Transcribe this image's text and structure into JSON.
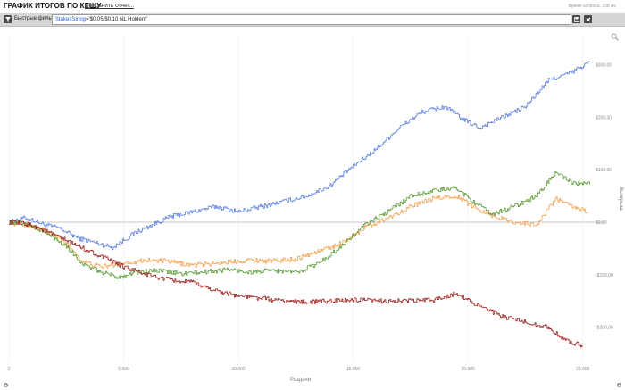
{
  "header": {
    "title": "ГРАФИК ИТОГОВ ПО КЕШУ",
    "save_link": "Сохранить отчет...",
    "timing": "Время запроса: 238 мс"
  },
  "filterbar": {
    "label": "Быстрые фильт",
    "filter_key": "StakesString",
    "filter_op": "=",
    "filter_value": "'$0,05/$0,10 NL Holdem'",
    "icons": [
      "filter-icon",
      "save-icon",
      "clear-icon"
    ]
  },
  "icons": {
    "zoom": "zoom-icon",
    "settings_left": "gear-icon",
    "settings_right": "gear-icon"
  },
  "chart_data": {
    "type": "line",
    "xlabel": "Раздачи",
    "ylabel": "Выигрыш",
    "xlim": [
      0,
      25400
    ],
    "ylim": [
      -265,
      355
    ],
    "x_ticks": [
      {
        "value": 0,
        "label": "0"
      },
      {
        "value": 5000,
        "label": "5 000"
      },
      {
        "value": 10000,
        "label": "10 000"
      },
      {
        "value": 15000,
        "label": "15 000"
      },
      {
        "value": 20000,
        "label": "20 000"
      },
      {
        "value": 25000,
        "label": "25 000"
      }
    ],
    "y_ticks": [
      {
        "value": 300,
        "label": "$300,00"
      },
      {
        "value": 200,
        "label": "$200,00"
      },
      {
        "value": 100,
        "label": "$100,00"
      },
      {
        "value": 0,
        "label": "$0,00"
      },
      {
        "value": -100,
        "label": "-$100,00"
      },
      {
        "value": -200,
        "label": "-$200,00"
      }
    ],
    "grid": "vertical",
    "colors": {
      "blue": "#5b7fe0",
      "orange": "#f3a14e",
      "green": "#5a9a36",
      "red": "#9b1c1c",
      "zero_line": "#b5b5b5",
      "grid": "#ececec"
    },
    "series": [
      {
        "color": "#5b7fe0",
        "anchors": [
          [
            0,
            0
          ],
          [
            600,
            8
          ],
          [
            1000,
            5
          ],
          [
            1500,
            -4
          ],
          [
            2200,
            -12
          ],
          [
            3000,
            -30
          ],
          [
            4500,
            -48
          ],
          [
            5500,
            -20
          ],
          [
            7000,
            10
          ],
          [
            9000,
            30
          ],
          [
            10000,
            20
          ],
          [
            11500,
            35
          ],
          [
            13000,
            50
          ],
          [
            14000,
            70
          ],
          [
            14800,
            100
          ],
          [
            16000,
            140
          ],
          [
            17000,
            180
          ],
          [
            18000,
            210
          ],
          [
            19000,
            220
          ],
          [
            19800,
            195
          ],
          [
            20500,
            180
          ],
          [
            21500,
            200
          ],
          [
            22500,
            220
          ],
          [
            23500,
            270
          ],
          [
            24500,
            285
          ],
          [
            25300,
            305
          ]
        ]
      },
      {
        "color": "#f3a14e",
        "anchors": [
          [
            0,
            0
          ],
          [
            700,
            -5
          ],
          [
            1500,
            -15
          ],
          [
            2500,
            -40
          ],
          [
            3200,
            -75
          ],
          [
            4000,
            -85
          ],
          [
            5000,
            -78
          ],
          [
            6000,
            -72
          ],
          [
            7000,
            -75
          ],
          [
            8000,
            -82
          ],
          [
            9000,
            -78
          ],
          [
            10500,
            -72
          ],
          [
            11500,
            -74
          ],
          [
            12500,
            -70
          ],
          [
            13500,
            -55
          ],
          [
            14500,
            -40
          ],
          [
            15500,
            -10
          ],
          [
            16500,
            8
          ],
          [
            17500,
            30
          ],
          [
            18500,
            45
          ],
          [
            19500,
            50
          ],
          [
            20200,
            30
          ],
          [
            21200,
            10
          ],
          [
            22000,
            0
          ],
          [
            23000,
            -5
          ],
          [
            23800,
            45
          ],
          [
            24500,
            30
          ],
          [
            25200,
            20
          ]
        ]
      },
      {
        "color": "#5a9a36",
        "anchors": [
          [
            0,
            0
          ],
          [
            700,
            -2
          ],
          [
            1500,
            -18
          ],
          [
            2500,
            -45
          ],
          [
            3200,
            -80
          ],
          [
            4000,
            -95
          ],
          [
            4800,
            -105
          ],
          [
            5500,
            -95
          ],
          [
            6500,
            -92
          ],
          [
            7500,
            -98
          ],
          [
            8500,
            -95
          ],
          [
            9500,
            -90
          ],
          [
            10500,
            -95
          ],
          [
            11500,
            -92
          ],
          [
            12500,
            -95
          ],
          [
            13500,
            -78
          ],
          [
            14500,
            -45
          ],
          [
            15500,
            -5
          ],
          [
            16500,
            20
          ],
          [
            17500,
            50
          ],
          [
            18500,
            60
          ],
          [
            19500,
            65
          ],
          [
            20200,
            40
          ],
          [
            21000,
            15
          ],
          [
            22000,
            30
          ],
          [
            23000,
            50
          ],
          [
            23800,
            95
          ],
          [
            24500,
            75
          ],
          [
            25300,
            72
          ]
        ]
      },
      {
        "color": "#9b1c1c",
        "anchors": [
          [
            0,
            0
          ],
          [
            1000,
            -5
          ],
          [
            2000,
            -25
          ],
          [
            3000,
            -45
          ],
          [
            4000,
            -65
          ],
          [
            5000,
            -85
          ],
          [
            6000,
            -100
          ],
          [
            7000,
            -110
          ],
          [
            8000,
            -115
          ],
          [
            9000,
            -130
          ],
          [
            10000,
            -140
          ],
          [
            11000,
            -145
          ],
          [
            12000,
            -150
          ],
          [
            13000,
            -152
          ],
          [
            14000,
            -150
          ],
          [
            15000,
            -148
          ],
          [
            16000,
            -150
          ],
          [
            17000,
            -150
          ],
          [
            18500,
            -148
          ],
          [
            19500,
            -135
          ],
          [
            20500,
            -160
          ],
          [
            21500,
            -180
          ],
          [
            22500,
            -190
          ],
          [
            23500,
            -200
          ],
          [
            24200,
            -225
          ],
          [
            25000,
            -235
          ]
        ]
      }
    ]
  }
}
